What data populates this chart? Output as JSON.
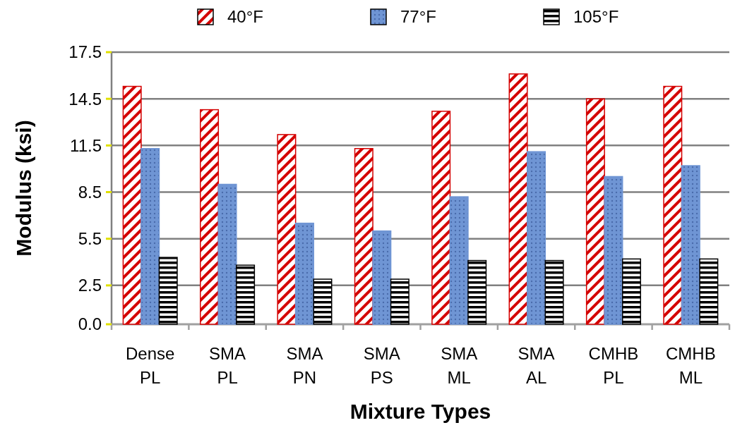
{
  "chart_data": {
    "type": "bar",
    "xlabel": "Mixture Types",
    "ylabel": "Modulus (ksi)",
    "categories": [
      "Dense\nPL",
      "SMA\nPL",
      "SMA\nPN",
      "SMA\nPS",
      "SMA\nML",
      "SMA\nAL",
      "CMHB\nPL",
      "CMHB\nML"
    ],
    "series": [
      {
        "name": "40°F",
        "color": "#d40000",
        "values": [
          15.3,
          13.8,
          12.2,
          11.3,
          13.7,
          16.1,
          14.5,
          15.3
        ]
      },
      {
        "name": "77°F",
        "color": "#6f95d4",
        "values": [
          11.3,
          9.0,
          6.5,
          6.0,
          8.2,
          11.1,
          9.5,
          10.2
        ]
      },
      {
        "name": "105°F",
        "color": "#000000",
        "values": [
          4.3,
          3.8,
          2.9,
          2.9,
          4.1,
          4.1,
          4.2,
          4.2
        ]
      }
    ],
    "ylim": [
      0,
      17.5
    ],
    "yticks": [
      {
        "value": 0,
        "label": "0.0"
      },
      {
        "value": 2.5,
        "label": "2.5"
      },
      {
        "value": 5.5,
        "label": "5.5"
      },
      {
        "value": 8.5,
        "label": "8.5"
      },
      {
        "value": 11.5,
        "label": "11.5"
      },
      {
        "value": 14.5,
        "label": "14.5"
      },
      {
        "value": 17.5,
        "label": "17.5"
      }
    ],
    "grid": "y",
    "legend": "top"
  }
}
